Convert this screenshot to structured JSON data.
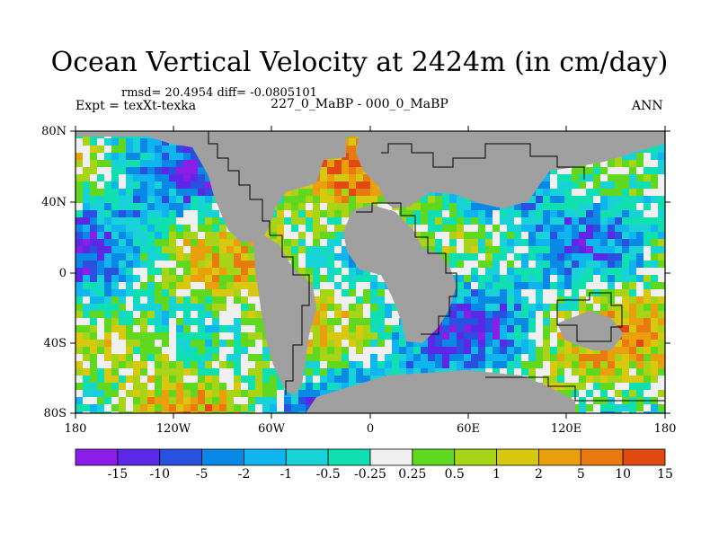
{
  "title": "Ocean Vertical Velocity at 2424m (in cm/day)",
  "stats": "rmsd= 20.4954 diff= -0.0805101",
  "experiment": "Expt = texXt-texka",
  "comparison": "227_0_MaBP - 000_0_MaBP",
  "season": "ANN",
  "colors": {
    "land": "#a0a0a0",
    "palette": [
      "#8a1ee6",
      "#5a28e6",
      "#2a50e0",
      "#0a88e6",
      "#10b4ee",
      "#18d2d8",
      "#10e0b0",
      "#f0f0f0",
      "#60d820",
      "#a8d418",
      "#d8c810",
      "#eaa00c",
      "#e87a10",
      "#e04a10"
    ]
  },
  "colorbar": {
    "labels": [
      "-15",
      "-10",
      "-5",
      "-2",
      "-1",
      "-0.5",
      "-0.25",
      "0.25",
      "0.5",
      "1",
      "2",
      "5",
      "10",
      "15"
    ]
  },
  "axes": {
    "lat_labels": [
      "80N",
      "40N",
      "0",
      "40S",
      "80S"
    ],
    "lon_labels": [
      "180",
      "120W",
      "60W",
      "0",
      "60E",
      "120E",
      "180"
    ]
  }
}
